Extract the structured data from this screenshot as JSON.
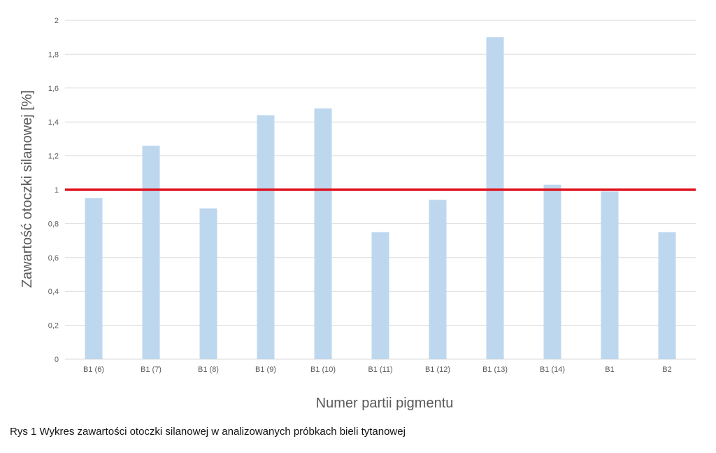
{
  "chart_data": {
    "type": "bar",
    "title": "",
    "xlabel": "Numer partii pigmentu",
    "ylabel": "Zawartość otoczki silanowej [%]",
    "categories": [
      "B1 (6)",
      "B1 (7)",
      "B1 (8)",
      "B1 (9)",
      "B1 (10)",
      "B1 (11)",
      "B1 (12)",
      "B1 (13)",
      "B1 (14)",
      "B1",
      "B2"
    ],
    "values": [
      0.95,
      1.26,
      0.89,
      1.44,
      1.48,
      0.75,
      0.94,
      1.9,
      1.03,
      0.99,
      0.75
    ],
    "ylim": [
      0,
      2
    ],
    "yticks": [
      0,
      0.2,
      0.4,
      0.6,
      0.8,
      1,
      1.2,
      1.4,
      1.6,
      1.8,
      2
    ],
    "ytick_labels": [
      "0",
      "0,2",
      "0,4",
      "0,6",
      "0,8",
      "1",
      "1,2",
      "1,4",
      "1,6",
      "1,8",
      "2"
    ],
    "grid": true,
    "reference_line": {
      "value": 1,
      "color": "#e0141e"
    },
    "bar_color": "#bdd7ee",
    "grid_color": "#d9d9d9",
    "text_color": "#595959"
  },
  "caption": "Rys 1 Wykres zawartości otoczki silanowej w analizowanych próbkach bieli tytanowej"
}
